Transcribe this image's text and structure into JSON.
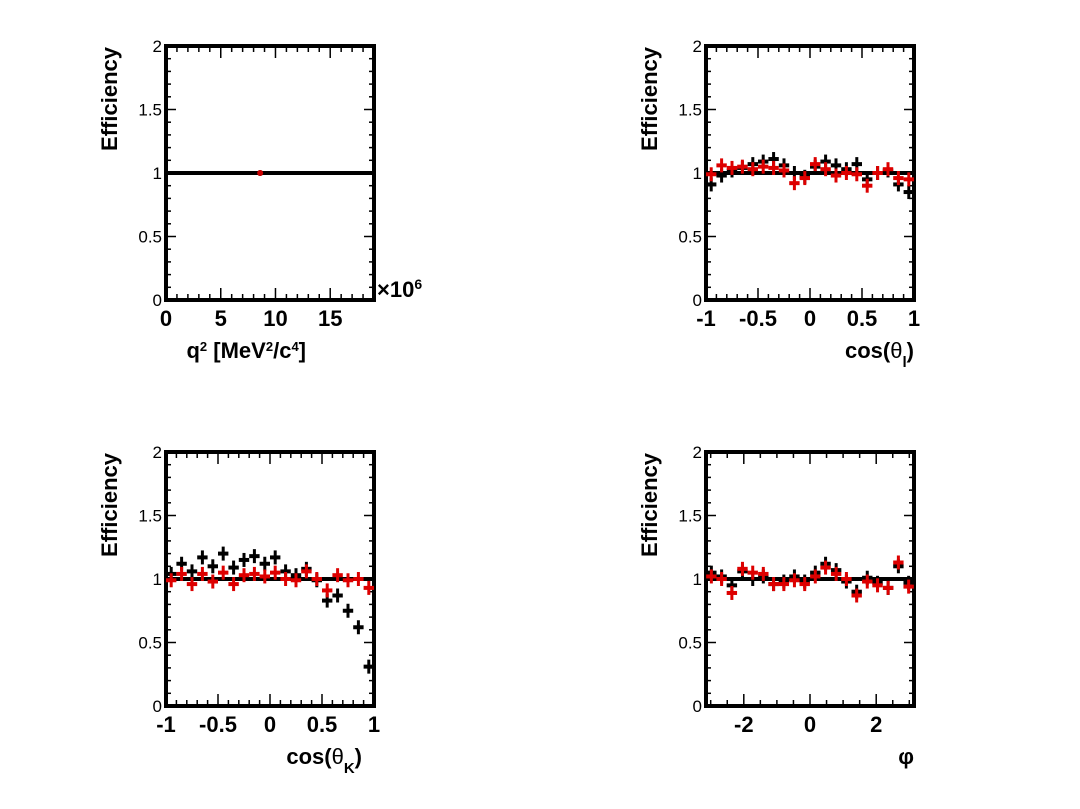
{
  "chart_data": [
    {
      "type": "scatter",
      "ylabel": "Efficiency",
      "xlabel_html": "q<tspan baseline-shift='super' font-size='13'>2</tspan> [MeV<tspan baseline-shift='super' font-size='13'>2</tspan>/c<tspan baseline-shift='super' font-size='13'>4</tspan>]",
      "xlabel": "q2 [MeV2/c4]",
      "xlim": [
        0,
        19
      ],
      "ylim": [
        0,
        2
      ],
      "xticks": [
        0,
        5,
        10,
        15
      ],
      "xtick_labels": [
        "0",
        "5",
        "10",
        "15"
      ],
      "yticks": [
        0,
        0.5,
        1,
        1.5,
        2
      ],
      "ytick_labels": [
        "0",
        "0.5",
        "1",
        "1.5",
        "2"
      ],
      "xminor": [
        1,
        2,
        3,
        4,
        6,
        7,
        8,
        9,
        11,
        12,
        13,
        14,
        16,
        17,
        18
      ],
      "exponent": "×10",
      "exponent_power": "6",
      "reference": 1,
      "series": [
        {
          "color": "#000000",
          "points": [
            [
              8.6,
              1.0
            ]
          ]
        },
        {
          "color": "#cc0000",
          "points": [
            [
              8.6,
              1.0
            ]
          ]
        }
      ]
    },
    {
      "type": "scatter",
      "ylabel": "Efficiency",
      "xlabel": "cos(θl)",
      "xlim": [
        -1,
        1
      ],
      "ylim": [
        0,
        2
      ],
      "xticks": [
        -1,
        -0.5,
        0,
        0.5,
        1
      ],
      "xtick_labels": [
        "-1",
        "-0.5",
        "0",
        "0.5",
        "1"
      ],
      "yticks": [
        0,
        0.5,
        1,
        1.5,
        2
      ],
      "ytick_labels": [
        "0",
        "0.5",
        "1",
        "1.5",
        "2"
      ],
      "xminor": [
        -0.9,
        -0.8,
        -0.7,
        -0.6,
        -0.4,
        -0.3,
        -0.2,
        -0.1,
        0.1,
        0.2,
        0.3,
        0.4,
        0.6,
        0.7,
        0.8,
        0.9
      ],
      "reference": 1,
      "series": [
        {
          "color": "#000000",
          "points": [
            [
              -0.95,
              0.91
            ],
            [
              -0.85,
              0.98
            ],
            [
              -0.75,
              1.02
            ],
            [
              -0.65,
              1.04
            ],
            [
              -0.55,
              1.07
            ],
            [
              -0.45,
              1.09
            ],
            [
              -0.35,
              1.11
            ],
            [
              -0.25,
              1.06
            ],
            [
              -0.15,
              1.0
            ],
            [
              -0.05,
              0.97
            ],
            [
              0.05,
              1.05
            ],
            [
              0.15,
              1.09
            ],
            [
              0.25,
              1.06
            ],
            [
              0.35,
              1.03
            ],
            [
              0.45,
              1.07
            ],
            [
              0.55,
              0.95
            ],
            [
              0.65,
              1.0
            ],
            [
              0.75,
              1.02
            ],
            [
              0.85,
              0.91
            ],
            [
              0.95,
              0.85
            ]
          ]
        },
        {
          "color": "#dd0000",
          "points": [
            [
              -0.95,
              0.99
            ],
            [
              -0.85,
              1.06
            ],
            [
              -0.75,
              1.04
            ],
            [
              -0.65,
              1.05
            ],
            [
              -0.55,
              1.03
            ],
            [
              -0.45,
              1.05
            ],
            [
              -0.35,
              1.04
            ],
            [
              -0.25,
              1.02
            ],
            [
              -0.15,
              0.92
            ],
            [
              -0.05,
              0.96
            ],
            [
              0.05,
              1.07
            ],
            [
              0.15,
              1.03
            ],
            [
              0.25,
              0.98
            ],
            [
              0.35,
              1.0
            ],
            [
              0.45,
              0.99
            ],
            [
              0.55,
              0.9
            ],
            [
              0.65,
              1.0
            ],
            [
              0.75,
              1.03
            ],
            [
              0.85,
              0.96
            ],
            [
              0.95,
              0.95
            ]
          ]
        }
      ]
    },
    {
      "type": "scatter",
      "ylabel": "Efficiency",
      "xlabel": "cos(θK)",
      "xlim": [
        -1,
        1
      ],
      "ylim": [
        0,
        2
      ],
      "xticks": [
        -1,
        -0.5,
        0,
        0.5,
        1
      ],
      "xtick_labels": [
        "-1",
        "-0.5",
        "0",
        "0.5",
        "1"
      ],
      "yticks": [
        0,
        0.5,
        1,
        1.5,
        2
      ],
      "ytick_labels": [
        "0",
        "0.5",
        "1",
        "1.5",
        "2"
      ],
      "xminor": [
        -0.9,
        -0.8,
        -0.7,
        -0.6,
        -0.4,
        -0.3,
        -0.2,
        -0.1,
        0.1,
        0.2,
        0.3,
        0.4,
        0.6,
        0.7,
        0.8,
        0.9
      ],
      "reference": 1,
      "series": [
        {
          "color": "#000000",
          "points": [
            [
              -0.95,
              1.04
            ],
            [
              -0.85,
              1.12
            ],
            [
              -0.75,
              1.06
            ],
            [
              -0.65,
              1.17
            ],
            [
              -0.55,
              1.1
            ],
            [
              -0.45,
              1.2
            ],
            [
              -0.35,
              1.09
            ],
            [
              -0.25,
              1.15
            ],
            [
              -0.15,
              1.18
            ],
            [
              -0.05,
              1.12
            ],
            [
              0.05,
              1.17
            ],
            [
              0.15,
              1.06
            ],
            [
              0.25,
              1.03
            ],
            [
              0.35,
              1.08
            ],
            [
              0.45,
              0.99
            ],
            [
              0.55,
              0.83
            ],
            [
              0.65,
              0.87
            ],
            [
              0.75,
              0.75
            ],
            [
              0.85,
              0.62
            ],
            [
              0.95,
              0.31
            ]
          ]
        },
        {
          "color": "#dd0000",
          "points": [
            [
              -0.95,
              0.99
            ],
            [
              -0.85,
              1.04
            ],
            [
              -0.75,
              0.96
            ],
            [
              -0.65,
              1.04
            ],
            [
              -0.55,
              0.98
            ],
            [
              -0.45,
              1.05
            ],
            [
              -0.35,
              0.96
            ],
            [
              -0.25,
              1.03
            ],
            [
              -0.15,
              1.04
            ],
            [
              -0.05,
              1.02
            ],
            [
              0.05,
              1.05
            ],
            [
              0.15,
              1.0
            ],
            [
              0.25,
              0.99
            ],
            [
              0.35,
              1.06
            ],
            [
              0.45,
              1.0
            ],
            [
              0.55,
              0.91
            ],
            [
              0.65,
              1.03
            ],
            [
              0.75,
              0.99
            ],
            [
              0.85,
              1.0
            ],
            [
              0.95,
              0.93
            ]
          ]
        }
      ]
    },
    {
      "type": "scatter",
      "ylabel": "Efficiency",
      "xlabel": "φ",
      "xlim": [
        -3.1416,
        3.1416
      ],
      "ylim": [
        0,
        2
      ],
      "xticks": [
        -2,
        0,
        2
      ],
      "xtick_labels": [
        "-2",
        "0",
        "2"
      ],
      "yticks": [
        0,
        0.5,
        1,
        1.5,
        2
      ],
      "ytick_labels": [
        "0",
        "0.5",
        "1",
        "1.5",
        "2"
      ],
      "xminor": [
        -3,
        -2.5,
        -1.5,
        -1,
        -0.5,
        0.5,
        1,
        1.5,
        2.5,
        3
      ],
      "reference": 1,
      "series": [
        {
          "color": "#000000",
          "points": [
            [
              -2.98,
              1.05
            ],
            [
              -2.67,
              1.02
            ],
            [
              -2.36,
              0.95
            ],
            [
              -2.04,
              1.06
            ],
            [
              -1.73,
              1.0
            ],
            [
              -1.41,
              1.02
            ],
            [
              -1.1,
              0.96
            ],
            [
              -0.79,
              0.98
            ],
            [
              -0.47,
              1.02
            ],
            [
              -0.16,
              0.98
            ],
            [
              0.16,
              1.05
            ],
            [
              0.47,
              1.12
            ],
            [
              0.79,
              1.07
            ],
            [
              1.1,
              0.98
            ],
            [
              1.41,
              0.9
            ],
            [
              1.73,
              1.01
            ],
            [
              2.04,
              0.97
            ],
            [
              2.36,
              0.93
            ],
            [
              2.67,
              1.1
            ],
            [
              2.98,
              0.97
            ]
          ]
        },
        {
          "color": "#dd0000",
          "points": [
            [
              -2.98,
              1.02
            ],
            [
              -2.67,
              1.0
            ],
            [
              -2.36,
              0.89
            ],
            [
              -2.04,
              1.08
            ],
            [
              -1.73,
              1.05
            ],
            [
              -1.41,
              1.04
            ],
            [
              -1.1,
              0.96
            ],
            [
              -0.79,
              0.96
            ],
            [
              -0.47,
              0.99
            ],
            [
              -0.16,
              0.96
            ],
            [
              0.16,
              1.02
            ],
            [
              0.47,
              1.09
            ],
            [
              0.79,
              1.04
            ],
            [
              1.1,
              1.0
            ],
            [
              1.41,
              0.87
            ],
            [
              1.73,
              0.98
            ],
            [
              2.04,
              0.95
            ],
            [
              2.36,
              0.93
            ],
            [
              2.67,
              1.13
            ],
            [
              2.98,
              0.94
            ]
          ]
        }
      ]
    }
  ]
}
